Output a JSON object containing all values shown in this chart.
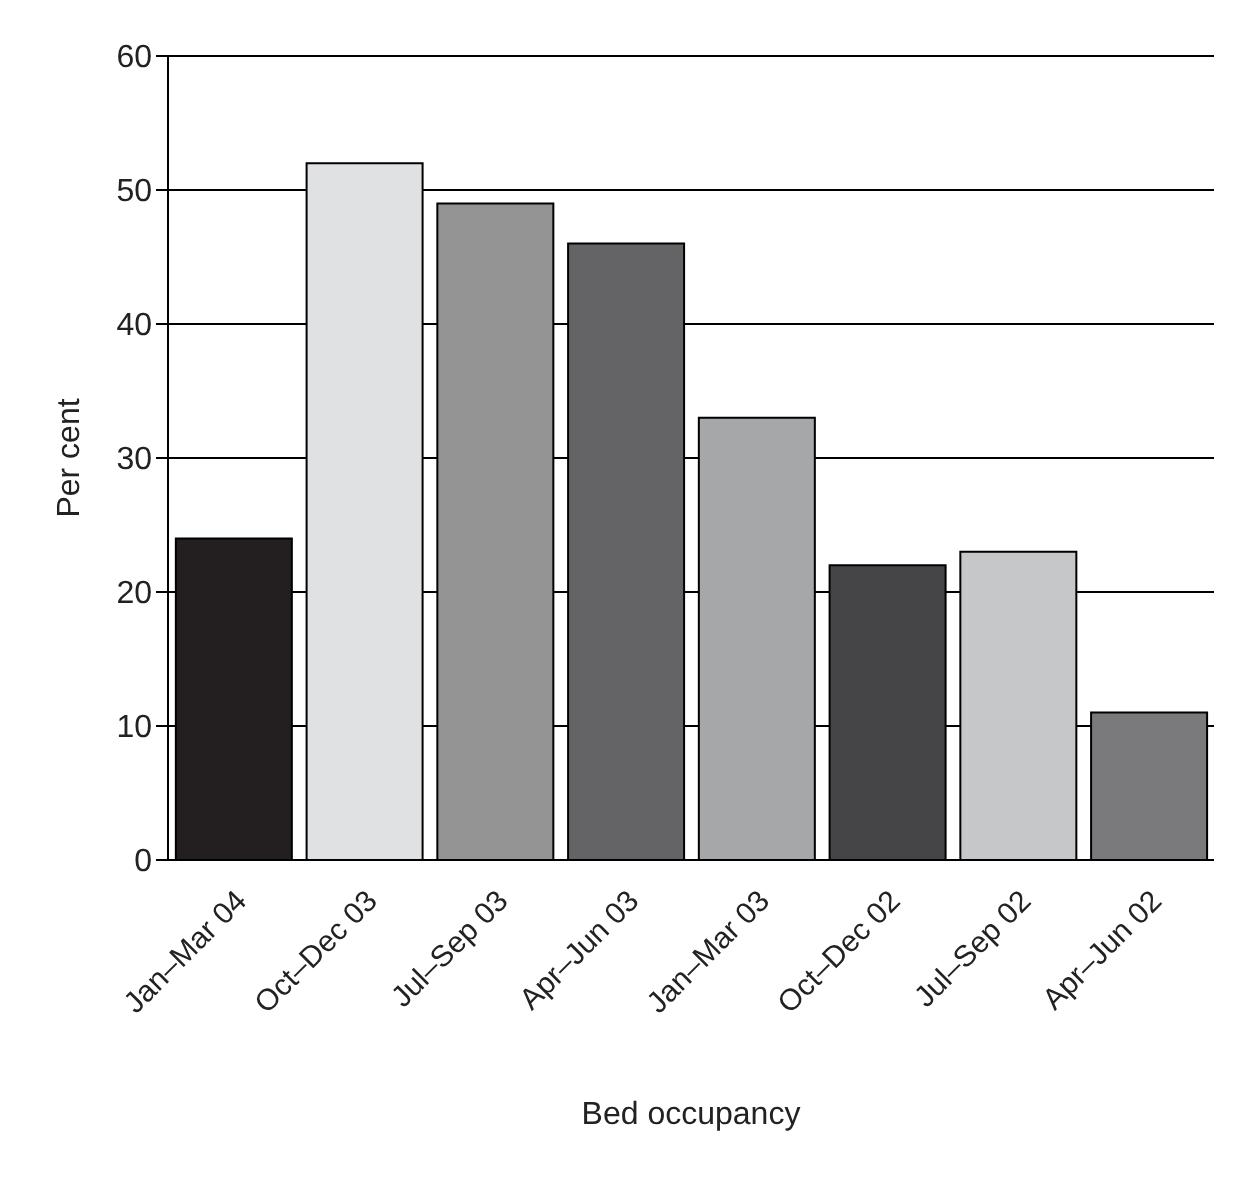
{
  "chart_data": {
    "type": "bar",
    "xlabel": "Bed occupancy",
    "ylabel": "Per cent",
    "categories": [
      "Jan–Mar 04",
      "Oct–Dec 03",
      "Jul–Sep 03",
      "Apr–Jun 03",
      "Jan–Mar 03",
      "Oct–Dec 02",
      "Jul–Sep 02",
      "Apr–Jun 02"
    ],
    "values": [
      24,
      52,
      49,
      46,
      33,
      22,
      23,
      11
    ],
    "colors": [
      "#231f20",
      "#e0e1e3",
      "#949494",
      "#646466",
      "#a6a7a9",
      "#454547",
      "#c6c7c8",
      "#7a7a7c"
    ],
    "ylim": [
      0,
      60
    ],
    "yticks": [
      0,
      10,
      20,
      30,
      40,
      50,
      60
    ],
    "grid": "y"
  }
}
